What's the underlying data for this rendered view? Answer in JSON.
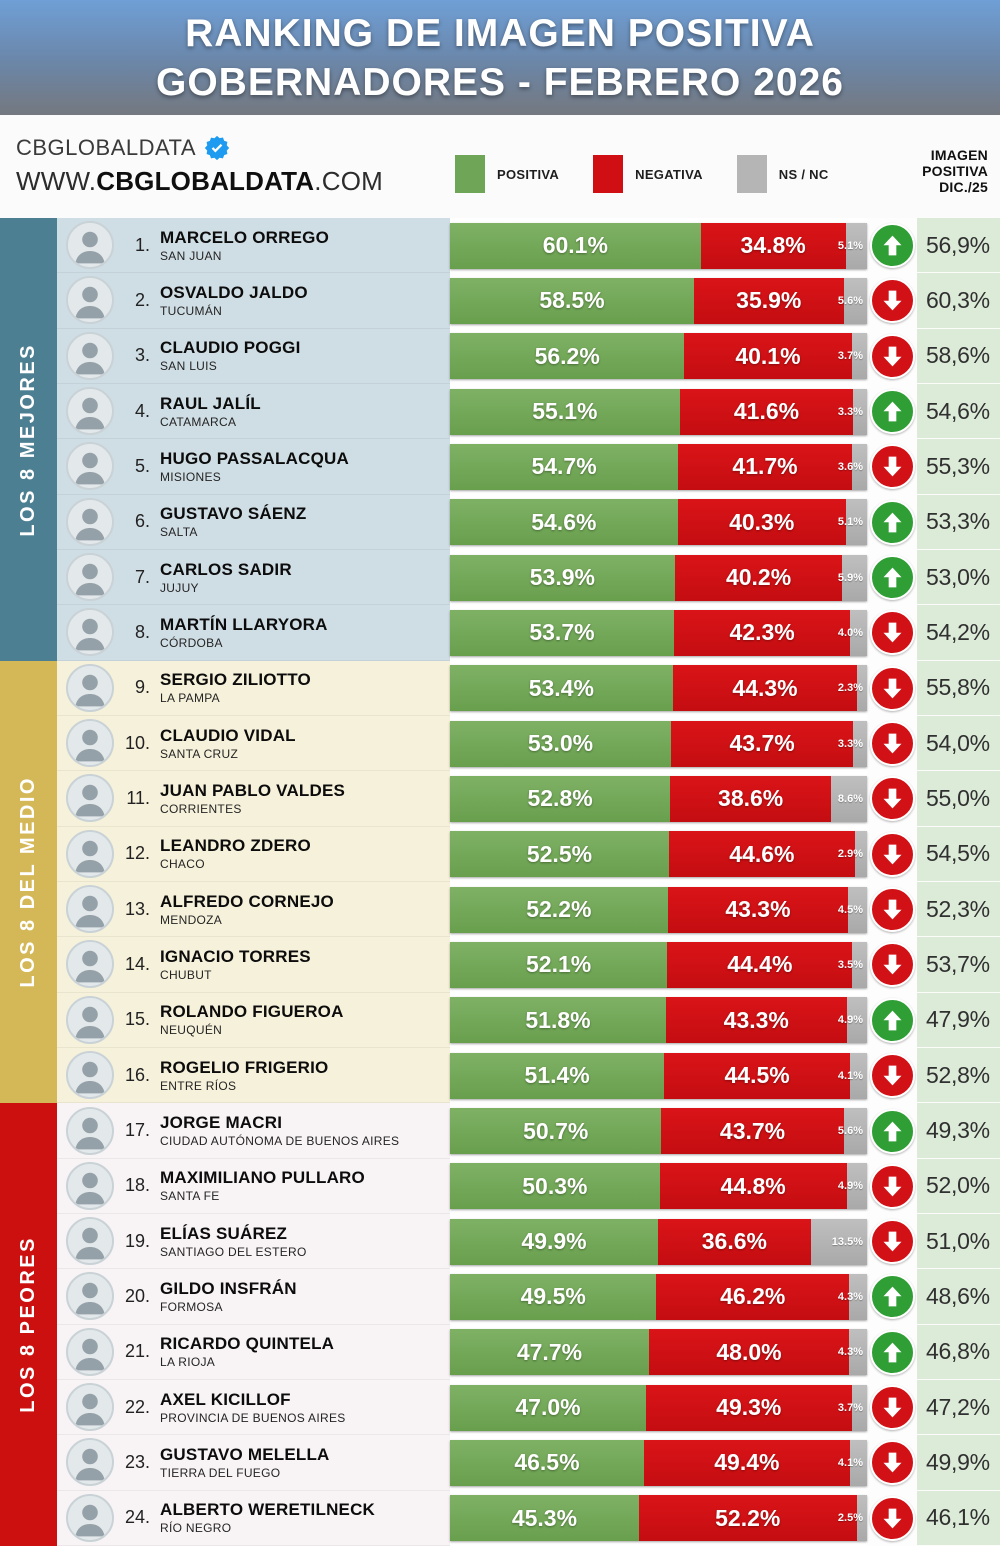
{
  "banner": {
    "title_line1": "RANKING DE IMAGEN POSITIVA",
    "title_line2": "GOBERNADORES - FEBRERO 2026"
  },
  "header": {
    "brand": "CBGLOBALDATA",
    "url_www": "WWW.",
    "url_brand": "CBGLOBALDATA",
    "url_com": ".COM",
    "legend": [
      {
        "label": "POSITIVA",
        "color": "#6ea557"
      },
      {
        "label": "NEGATIVA",
        "color": "#cf0f13"
      },
      {
        "label": "NS / NC",
        "color": "#b5b5b5"
      }
    ],
    "right_col_header_lines": [
      "IMAGEN",
      "POSITIVA",
      "DIC./25"
    ]
  },
  "sections": [
    {
      "label": "LOS 8 MEJORES",
      "strip_color": "#4d7f92",
      "row_bg": "#cfdde4",
      "rows": [
        {
          "rank": "1.",
          "name": "MARCELO ORREGO",
          "province": "SAN JUAN",
          "positive": 60.1,
          "negative": 34.8,
          "nsnc": 5.1,
          "positive_label": "60.1%",
          "negative_label": "34.8%",
          "nsnc_label": "5.1%",
          "trend": "up",
          "previous_label": "56,9%"
        },
        {
          "rank": "2.",
          "name": "OSVALDO JALDO",
          "province": "TUCUMÁN",
          "positive": 58.5,
          "negative": 35.9,
          "nsnc": 5.6,
          "positive_label": "58.5%",
          "negative_label": "35.9%",
          "nsnc_label": "5.6%",
          "trend": "down",
          "previous_label": "60,3%"
        },
        {
          "rank": "3.",
          "name": "CLAUDIO POGGI",
          "province": "SAN LUIS",
          "positive": 56.2,
          "negative": 40.1,
          "nsnc": 3.7,
          "positive_label": "56.2%",
          "negative_label": "40.1%",
          "nsnc_label": "3.7%",
          "trend": "down",
          "previous_label": "58,6%"
        },
        {
          "rank": "4.",
          "name": "RAUL JALÍL",
          "province": "CATAMARCA",
          "positive": 55.1,
          "negative": 41.6,
          "nsnc": 3.3,
          "positive_label": "55.1%",
          "negative_label": "41.6%",
          "nsnc_label": "3.3%",
          "trend": "up",
          "previous_label": "54,6%"
        },
        {
          "rank": "5.",
          "name": "HUGO PASSALACQUA",
          "province": "MISIONES",
          "positive": 54.7,
          "negative": 41.7,
          "nsnc": 3.6,
          "positive_label": "54.7%",
          "negative_label": "41.7%",
          "nsnc_label": "3.6%",
          "trend": "down",
          "previous_label": "55,3%"
        },
        {
          "rank": "6.",
          "name": "GUSTAVO SÁENZ",
          "province": "SALTA",
          "positive": 54.6,
          "negative": 40.3,
          "nsnc": 5.1,
          "positive_label": "54.6%",
          "negative_label": "40.3%",
          "nsnc_label": "5.1%",
          "trend": "up",
          "previous_label": "53,3%"
        },
        {
          "rank": "7.",
          "name": "CARLOS SADIR",
          "province": "JUJUY",
          "positive": 53.9,
          "negative": 40.2,
          "nsnc": 5.9,
          "positive_label": "53.9%",
          "negative_label": "40.2%",
          "nsnc_label": "5.9%",
          "trend": "up",
          "previous_label": "53,0%"
        },
        {
          "rank": "8.",
          "name": "MARTÍN LLARYORA",
          "province": "CÓRDOBA",
          "positive": 53.7,
          "negative": 42.3,
          "nsnc": 4.0,
          "positive_label": "53.7%",
          "negative_label": "42.3%",
          "nsnc_label": "4.0%",
          "trend": "down",
          "previous_label": "54,2%"
        }
      ]
    },
    {
      "label": "LOS 8 DEL MEDIO",
      "strip_color": "#d4b757",
      "row_bg": "#f6f1da",
      "rows": [
        {
          "rank": "9.",
          "name": "SERGIO ZILIOTTO",
          "province": "LA PAMPA",
          "positive": 53.4,
          "negative": 44.3,
          "nsnc": 2.3,
          "positive_label": "53.4%",
          "negative_label": "44.3%",
          "nsnc_label": "2.3%",
          "trend": "down",
          "previous_label": "55,8%"
        },
        {
          "rank": "10.",
          "name": "CLAUDIO VIDAL",
          "province": "SANTA CRUZ",
          "positive": 53.0,
          "negative": 43.7,
          "nsnc": 3.3,
          "positive_label": "53.0%",
          "negative_label": "43.7%",
          "nsnc_label": "3.3%",
          "trend": "down",
          "previous_label": "54,0%"
        },
        {
          "rank": "11.",
          "name": "JUAN PABLO VALDES",
          "province": "CORRIENTES",
          "positive": 52.8,
          "negative": 38.6,
          "nsnc": 8.6,
          "positive_label": "52.8%",
          "negative_label": "38.6%",
          "nsnc_label": "8.6%",
          "trend": "down",
          "previous_label": "55,0%"
        },
        {
          "rank": "12.",
          "name": "LEANDRO ZDERO",
          "province": "CHACO",
          "positive": 52.5,
          "negative": 44.6,
          "nsnc": 2.9,
          "positive_label": "52.5%",
          "negative_label": "44.6%",
          "nsnc_label": "2.9%",
          "trend": "down",
          "previous_label": "54,5%"
        },
        {
          "rank": "13.",
          "name": "ALFREDO CORNEJO",
          "province": "MENDOZA",
          "positive": 52.2,
          "negative": 43.3,
          "nsnc": 4.5,
          "positive_label": "52.2%",
          "negative_label": "43.3%",
          "nsnc_label": "4.5%",
          "trend": "down",
          "previous_label": "52,3%"
        },
        {
          "rank": "14.",
          "name": "IGNACIO TORRES",
          "province": "CHUBUT",
          "positive": 52.1,
          "negative": 44.4,
          "nsnc": 3.5,
          "positive_label": "52.1%",
          "negative_label": "44.4%",
          "nsnc_label": "3.5%",
          "trend": "down",
          "previous_label": "53,7%"
        },
        {
          "rank": "15.",
          "name": "ROLANDO FIGUEROA",
          "province": "NEUQUÉN",
          "positive": 51.8,
          "negative": 43.3,
          "nsnc": 4.9,
          "positive_label": "51.8%",
          "negative_label": "43.3%",
          "nsnc_label": "4.9%",
          "trend": "up",
          "previous_label": "47,9%"
        },
        {
          "rank": "16.",
          "name": "ROGELIO FRIGERIO",
          "province": "ENTRE RÍOS",
          "positive": 51.4,
          "negative": 44.5,
          "nsnc": 4.1,
          "positive_label": "51.4%",
          "negative_label": "44.5%",
          "nsnc_label": "4.1%",
          "trend": "down",
          "previous_label": "52,8%"
        }
      ]
    },
    {
      "label": "LOS 8 PEORES",
      "strip_color": "#cc0f0f",
      "row_bg": "#f8f3f5",
      "rows": [
        {
          "rank": "17.",
          "name": "JORGE MACRI",
          "province": "CIUDAD AUTÓNOMA DE BUENOS AIRES",
          "positive": 50.7,
          "negative": 43.7,
          "nsnc": 5.6,
          "positive_label": "50.7%",
          "negative_label": "43.7%",
          "nsnc_label": "5.6%",
          "trend": "up",
          "previous_label": "49,3%"
        },
        {
          "rank": "18.",
          "name": "MAXIMILIANO PULLARO",
          "province": "SANTA FE",
          "positive": 50.3,
          "negative": 44.8,
          "nsnc": 4.9,
          "positive_label": "50.3%",
          "negative_label": "44.8%",
          "nsnc_label": "4.9%",
          "trend": "down",
          "previous_label": "52,0%"
        },
        {
          "rank": "19.",
          "name": "ELÍAS SUÁREZ",
          "province": "SANTIAGO DEL ESTERO",
          "positive": 49.9,
          "negative": 36.6,
          "nsnc": 13.5,
          "positive_label": "49.9%",
          "negative_label": "36.6%",
          "nsnc_label": "13.5%",
          "trend": "down",
          "previous_label": "51,0%"
        },
        {
          "rank": "20.",
          "name": "GILDO INSFRÁN",
          "province": "FORMOSA",
          "positive": 49.5,
          "negative": 46.2,
          "nsnc": 4.3,
          "positive_label": "49.5%",
          "negative_label": "46.2%",
          "nsnc_label": "4.3%",
          "trend": "up",
          "previous_label": "48,6%"
        },
        {
          "rank": "21.",
          "name": "RICARDO QUINTELA",
          "province": "LA RIOJA",
          "positive": 47.7,
          "negative": 48.0,
          "nsnc": 4.3,
          "positive_label": "47.7%",
          "negative_label": "48.0%",
          "nsnc_label": "4.3%",
          "trend": "up",
          "previous_label": "46,8%"
        },
        {
          "rank": "22.",
          "name": "AXEL KICILLOF",
          "province": "PROVINCIA DE BUENOS AIRES",
          "positive": 47.0,
          "negative": 49.3,
          "nsnc": 3.7,
          "positive_label": "47.0%",
          "negative_label": "49.3%",
          "nsnc_label": "3.7%",
          "trend": "down",
          "previous_label": "47,2%"
        },
        {
          "rank": "23.",
          "name": "GUSTAVO MELELLA",
          "province": "TIERRA DEL FUEGO",
          "positive": 46.5,
          "negative": 49.4,
          "nsnc": 4.1,
          "positive_label": "46.5%",
          "negative_label": "49.4%",
          "nsnc_label": "4.1%",
          "trend": "down",
          "previous_label": "49,9%"
        },
        {
          "rank": "24.",
          "name": "ALBERTO WERETILNECK",
          "province": "RÍO NEGRO",
          "positive": 45.3,
          "negative": 52.2,
          "nsnc": 2.5,
          "positive_label": "45.3%",
          "negative_label": "52.2%",
          "nsnc_label": "2.5%",
          "trend": "down",
          "previous_label": "46,1%"
        }
      ]
    }
  ],
  "chart_data": {
    "type": "bar",
    "subtype": "horizontal-stacked",
    "title": "RANKING DE IMAGEN POSITIVA GOBERNADORES - FEBRERO 2026",
    "legend": [
      "POSITIVA",
      "NEGATIVA",
      "NS / NC"
    ],
    "legend_position": "top",
    "xlim": [
      0,
      100
    ],
    "categories": [
      "MARCELO ORREGO",
      "OSVALDO JALDO",
      "CLAUDIO POGGI",
      "RAUL JALÍL",
      "HUGO PASSALACQUA",
      "GUSTAVO SÁENZ",
      "CARLOS SADIR",
      "MARTÍN LLARYORA",
      "SERGIO ZILIOTTO",
      "CLAUDIO VIDAL",
      "JUAN PABLO VALDES",
      "LEANDRO ZDERO",
      "ALFREDO CORNEJO",
      "IGNACIO TORRES",
      "ROLANDO FIGUEROA",
      "ROGELIO FRIGERIO",
      "JORGE MACRI",
      "MAXIMILIANO PULLARO",
      "ELÍAS SUÁREZ",
      "GILDO INSFRÁN",
      "RICARDO QUINTELA",
      "AXEL KICILLOF",
      "GUSTAVO MELELLA",
      "ALBERTO WERETILNECK"
    ],
    "provinces": [
      "SAN JUAN",
      "TUCUMÁN",
      "SAN LUIS",
      "CATAMARCA",
      "MISIONES",
      "SALTA",
      "JUJUY",
      "CÓRDOBA",
      "LA PAMPA",
      "SANTA CRUZ",
      "CORRIENTES",
      "CHACO",
      "MENDOZA",
      "CHUBUT",
      "NEUQUÉN",
      "ENTRE RÍOS",
      "CIUDAD AUTÓNOMA DE BUENOS AIRES",
      "SANTA FE",
      "SANTIAGO DEL ESTERO",
      "FORMOSA",
      "LA RIOJA",
      "PROVINCIA DE BUENOS AIRES",
      "TIERRA DEL FUEGO",
      "RÍO NEGRO"
    ],
    "series": [
      {
        "name": "POSITIVA",
        "color": "#6ea557",
        "values": [
          60.1,
          58.5,
          56.2,
          55.1,
          54.7,
          54.6,
          53.9,
          53.7,
          53.4,
          53.0,
          52.8,
          52.5,
          52.2,
          52.1,
          51.8,
          51.4,
          50.7,
          50.3,
          49.9,
          49.5,
          47.7,
          47.0,
          46.5,
          45.3
        ]
      },
      {
        "name": "NEGATIVA",
        "color": "#cf0f13",
        "values": [
          34.8,
          35.9,
          40.1,
          41.6,
          41.7,
          40.3,
          40.2,
          42.3,
          44.3,
          43.7,
          38.6,
          44.6,
          43.3,
          44.4,
          43.3,
          44.5,
          43.7,
          44.8,
          36.6,
          46.2,
          48.0,
          49.3,
          49.4,
          52.2
        ]
      },
      {
        "name": "NS / NC",
        "color": "#b5b5b5",
        "values": [
          5.1,
          5.6,
          3.7,
          3.3,
          3.6,
          5.1,
          5.9,
          4.0,
          2.3,
          3.3,
          8.6,
          2.9,
          4.5,
          3.5,
          4.9,
          4.1,
          5.6,
          4.9,
          13.5,
          4.3,
          4.3,
          3.7,
          4.1,
          2.5
        ]
      }
    ],
    "previous_positive_dic25": [
      56.9,
      60.3,
      58.6,
      54.6,
      55.3,
      53.3,
      53.0,
      54.2,
      55.8,
      54.0,
      55.0,
      54.5,
      52.3,
      53.7,
      47.9,
      52.8,
      49.3,
      52.0,
      51.0,
      48.6,
      46.8,
      47.2,
      49.9,
      46.1
    ],
    "trend_vs_dic25": [
      "up",
      "down",
      "down",
      "up",
      "down",
      "up",
      "up",
      "down",
      "down",
      "down",
      "down",
      "down",
      "down",
      "down",
      "up",
      "down",
      "up",
      "down",
      "down",
      "up",
      "up",
      "down",
      "down",
      "down"
    ],
    "groups": [
      {
        "label": "LOS 8 MEJORES",
        "rows": [
          1,
          8
        ]
      },
      {
        "label": "LOS 8 DEL MEDIO",
        "rows": [
          9,
          16
        ]
      },
      {
        "label": "LOS 8 PEORES",
        "rows": [
          17,
          24
        ]
      }
    ]
  }
}
